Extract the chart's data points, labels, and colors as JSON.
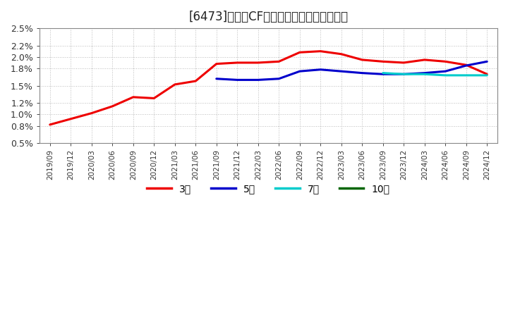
{
  "title": "[6473]　営業CFマージンの標準偏差の推移",
  "title_fontsize": 12,
  "plot_bg_color": "#ffffff",
  "fig_bg_color": "#ffffff",
  "grid_color": "#aaaaaa",
  "yticks": [
    0.005,
    0.008,
    0.01,
    0.012,
    0.015,
    0.018,
    0.02,
    0.022,
    0.025
  ],
  "ytick_labels": [
    "0.5%",
    "0.8%",
    "1.0%",
    "1.2%",
    "1.5%",
    "1.8%",
    "2.0%",
    "2.2%",
    "2.5%"
  ],
  "ylim": [
    0.005,
    0.025
  ],
  "x_labels": [
    "2019/09",
    "2019/12",
    "2020/03",
    "2020/06",
    "2020/09",
    "2020/12",
    "2021/03",
    "2021/06",
    "2021/09",
    "2021/12",
    "2022/03",
    "2022/06",
    "2022/09",
    "2022/12",
    "2023/03",
    "2023/06",
    "2023/09",
    "2023/12",
    "2024/03",
    "2024/06",
    "2024/09",
    "2024/12"
  ],
  "series": {
    "3年": {
      "color": "#ee0000",
      "linewidth": 2.2,
      "values": [
        0.0082,
        0.0092,
        0.0102,
        0.0114,
        0.013,
        0.0128,
        0.0152,
        0.0158,
        0.0188,
        0.019,
        0.019,
        0.0192,
        0.0208,
        0.021,
        0.0205,
        0.0195,
        0.0192,
        0.019,
        0.0195,
        0.0192,
        0.0186,
        0.017
      ]
    },
    "5年": {
      "color": "#0000cc",
      "linewidth": 2.2,
      "values": [
        null,
        null,
        null,
        null,
        null,
        null,
        null,
        null,
        0.0162,
        0.016,
        0.016,
        0.0162,
        0.0175,
        0.0178,
        0.0175,
        0.0172,
        0.017,
        0.017,
        0.0172,
        0.0175,
        0.0185,
        0.0192
      ]
    },
    "7年": {
      "color": "#00cccc",
      "linewidth": 2.2,
      "values": [
        null,
        null,
        null,
        null,
        null,
        null,
        null,
        null,
        null,
        null,
        null,
        null,
        null,
        null,
        null,
        null,
        0.0172,
        0.017,
        0.017,
        0.0168,
        0.0168,
        0.0168
      ]
    },
    "10年": {
      "color": "#006600",
      "linewidth": 2.2,
      "values": [
        null,
        null,
        null,
        null,
        null,
        null,
        null,
        null,
        null,
        null,
        null,
        null,
        null,
        null,
        null,
        null,
        null,
        null,
        null,
        null,
        null,
        null
      ]
    }
  },
  "legend_labels": [
    "3年",
    "5年",
    "7年",
    "10年"
  ],
  "legend_colors": [
    "#ee0000",
    "#0000cc",
    "#00cccc",
    "#006600"
  ]
}
